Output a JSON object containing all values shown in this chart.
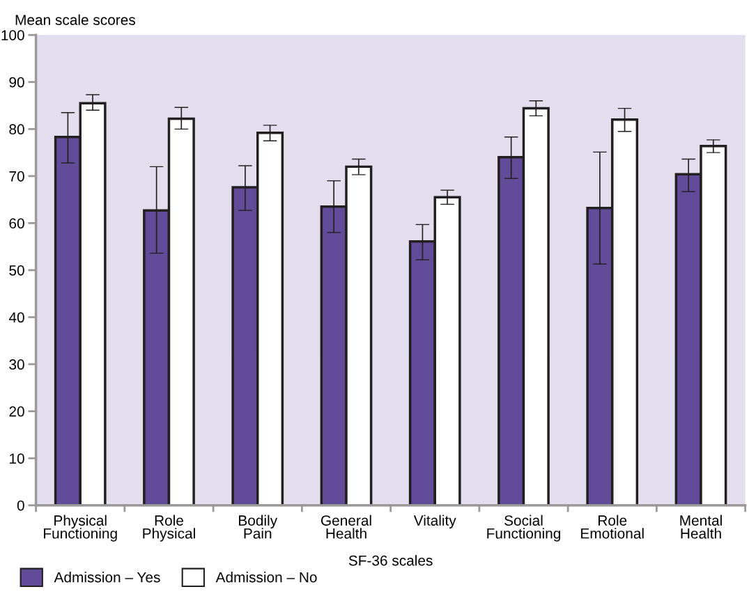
{
  "chart_data": {
    "type": "bar",
    "ylabel": "Mean scale scores",
    "xlabel": "SF-36 scales",
    "categories": [
      "Physical\nFunctioning",
      "Role\nPhysical",
      "Bodily\nPain",
      "General\nHealth",
      "Vitality",
      "Social\nFunctioning",
      "Role\nEmotional",
      "Mental\nHealth"
    ],
    "series": [
      {
        "name": "Admission – Yes",
        "color": "#624b98",
        "values": [
          78.3,
          62.7,
          67.6,
          63.5,
          56.1,
          74.0,
          63.2,
          70.4
        ],
        "errors": [
          [
            72.8,
            83.5
          ],
          [
            53.6,
            72.0
          ],
          [
            62.7,
            72.2
          ],
          [
            58.0,
            69.0
          ],
          [
            52.2,
            59.7
          ],
          [
            69.5,
            78.3
          ],
          [
            51.3,
            75.1
          ],
          [
            66.7,
            73.6
          ]
        ]
      },
      {
        "name": "Admission – No",
        "color": "#ffffff",
        "values": [
          85.5,
          82.2,
          79.2,
          72.0,
          65.5,
          84.4,
          82.0,
          76.4
        ],
        "errors": [
          [
            84.0,
            87.3
          ],
          [
            80.0,
            84.6
          ],
          [
            77.5,
            80.8
          ],
          [
            70.3,
            73.6
          ],
          [
            64.0,
            67.0
          ],
          [
            82.8,
            86.0
          ],
          [
            79.5,
            84.4
          ],
          [
            75.0,
            77.7
          ]
        ]
      }
    ],
    "ylim": [
      0,
      100
    ],
    "yticks": [
      0,
      10,
      20,
      30,
      40,
      50,
      60,
      70,
      80,
      90,
      100
    ],
    "grid": false,
    "legend": "bottom left"
  }
}
